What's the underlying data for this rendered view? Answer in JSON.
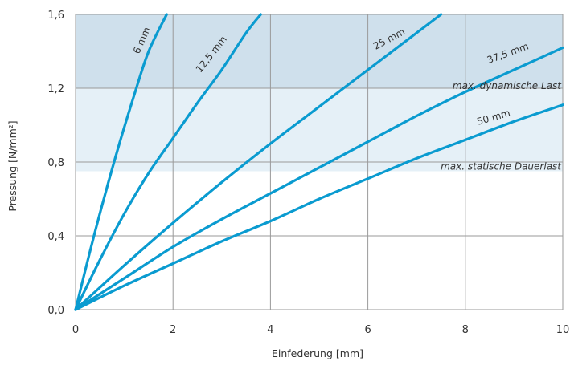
{
  "chart_data": {
    "type": "line",
    "xlabel": "Einfederung [mm]",
    "ylabel": "Pressung [N/mm²]",
    "xlim": [
      0,
      10
    ],
    "ylim": [
      0,
      1.6
    ],
    "xticks": [
      0,
      2,
      4,
      6,
      8,
      10
    ],
    "xtick_labels": [
      "0",
      "2",
      "4",
      "6",
      "8",
      "10"
    ],
    "yticks": [
      0,
      0.4,
      0.8,
      1.2,
      1.6
    ],
    "ytick_labels": [
      "0,0",
      "0,4",
      "0,8",
      "1,2",
      "1,6"
    ],
    "grid": true,
    "series": [
      {
        "name": "6 mm",
        "x": [
          0,
          0.3,
          0.6,
          0.9,
          1.2,
          1.5,
          1.87
        ],
        "y": [
          0,
          0.32,
          0.62,
          0.9,
          1.16,
          1.4,
          1.6
        ]
      },
      {
        "name": "12,5 mm",
        "x": [
          0,
          0.5,
          1,
          1.5,
          2,
          2.5,
          3,
          3.5,
          3.8
        ],
        "y": [
          0,
          0.27,
          0.52,
          0.74,
          0.93,
          1.12,
          1.3,
          1.5,
          1.6
        ]
      },
      {
        "name": "25 mm",
        "x": [
          0,
          1,
          2,
          3,
          4,
          5,
          6,
          7,
          7.5
        ],
        "y": [
          0,
          0.24,
          0.47,
          0.69,
          0.9,
          1.1,
          1.3,
          1.5,
          1.6
        ]
      },
      {
        "name": "37,5 mm",
        "x": [
          0,
          1,
          2,
          3,
          4,
          5,
          6,
          7,
          8,
          9,
          10
        ],
        "y": [
          0,
          0.17,
          0.34,
          0.49,
          0.63,
          0.77,
          0.91,
          1.05,
          1.18,
          1.3,
          1.42
        ]
      },
      {
        "name": "50 mm",
        "x": [
          0,
          1,
          2,
          3,
          4,
          5,
          6,
          7,
          8,
          9,
          10
        ],
        "y": [
          0,
          0.13,
          0.25,
          0.37,
          0.48,
          0.6,
          0.71,
          0.82,
          0.92,
          1.02,
          1.11
        ]
      }
    ],
    "bands": [
      {
        "label": "max. dynamische Last",
        "y_from": 1.2,
        "y_to": 1.6,
        "color": "#cfe0ec"
      },
      {
        "label": "max. statische Dauerlast",
        "y_from": 0.75,
        "y_to": 1.2,
        "color": "#e5f0f7"
      }
    ],
    "line_color": "#0a9bd0"
  }
}
